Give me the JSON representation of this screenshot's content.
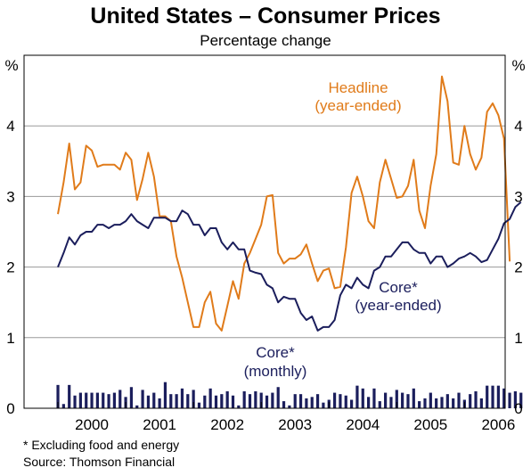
{
  "title": "United States – Consumer Prices",
  "subtitle": "Percentage change",
  "footnote": "* Excluding food and energy",
  "source": "Source: Thomson Financial",
  "colors": {
    "headline": "#E07B1A",
    "core": "#1B1E5C",
    "grid": "#9a9a9a",
    "frame": "#000000"
  },
  "chart_data": {
    "type": "line",
    "title": "United States – Consumer Prices",
    "subtitle": "Percentage change",
    "ylabel_left": "%",
    "ylabel_right": "%",
    "ylim": [
      0,
      5
    ],
    "yticks": [
      0,
      1,
      2,
      3,
      4
    ],
    "xlim": [
      1999.5,
      2006.6
    ],
    "xtick_labels": [
      "2000",
      "2001",
      "2002",
      "2003",
      "2004",
      "2005",
      "2006"
    ],
    "grid": true,
    "annotations": {
      "headline": [
        "Headline",
        "(year-ended)"
      ],
      "core": [
        "Core*",
        "(year-ended)"
      ],
      "core_monthly": [
        "Core*",
        "(monthly)"
      ]
    },
    "series": [
      {
        "name": "Headline (year-ended)",
        "style": "line",
        "color": "#E07B1A",
        "x_start": 2000.0,
        "step": 0.08333,
        "values": [
          2.75,
          3.2,
          3.75,
          3.1,
          3.2,
          3.72,
          3.65,
          3.42,
          3.45,
          3.45,
          3.45,
          3.38,
          3.62,
          3.52,
          2.95,
          3.25,
          3.62,
          3.28,
          2.72,
          2.72,
          2.65,
          2.15,
          1.85,
          1.5,
          1.15,
          1.15,
          1.5,
          1.65,
          1.2,
          1.1,
          1.45,
          1.8,
          1.55,
          2.05,
          2.2,
          2.4,
          2.6,
          3.0,
          3.02,
          2.2,
          2.05,
          2.12,
          2.12,
          2.18,
          2.32,
          2.05,
          1.8,
          1.95,
          1.98,
          1.7,
          1.72,
          2.28,
          3.05,
          3.28,
          3.0,
          2.65,
          2.55,
          3.2,
          3.52,
          3.25,
          2.98,
          3.0,
          3.15,
          3.52,
          2.8,
          2.55,
          3.15,
          3.6,
          4.7,
          4.35,
          3.48,
          3.45,
          4.0,
          3.6,
          3.38,
          3.55,
          4.2,
          4.32,
          4.15,
          3.82,
          2.08
        ]
      },
      {
        "name": "Core* (year-ended)",
        "style": "line",
        "color": "#1B1E5C",
        "x_start": 2000.0,
        "step": 0.08333,
        "values": [
          2.0,
          2.2,
          2.42,
          2.32,
          2.45,
          2.5,
          2.5,
          2.6,
          2.6,
          2.55,
          2.6,
          2.6,
          2.65,
          2.75,
          2.65,
          2.6,
          2.55,
          2.7,
          2.7,
          2.7,
          2.65,
          2.65,
          2.8,
          2.75,
          2.6,
          2.6,
          2.45,
          2.55,
          2.55,
          2.35,
          2.25,
          2.35,
          2.25,
          2.25,
          1.95,
          1.92,
          1.9,
          1.75,
          1.7,
          1.5,
          1.58,
          1.55,
          1.55,
          1.35,
          1.25,
          1.3,
          1.1,
          1.15,
          1.15,
          1.25,
          1.6,
          1.75,
          1.7,
          1.85,
          1.75,
          1.7,
          1.95,
          2.0,
          2.15,
          2.15,
          2.25,
          2.35,
          2.35,
          2.25,
          2.2,
          2.2,
          2.05,
          2.15,
          2.15,
          2.0,
          2.05,
          2.12,
          2.15,
          2.2,
          2.15,
          2.07,
          2.1,
          2.25,
          2.4,
          2.62,
          2.68,
          2.85,
          2.92
        ]
      },
      {
        "name": "Core* (monthly)",
        "style": "bar",
        "color": "#1B1E5C",
        "x_start": 2000.0,
        "step": 0.08333,
        "values": [
          0.33,
          0.06,
          0.33,
          0.18,
          0.22,
          0.22,
          0.22,
          0.22,
          0.22,
          0.2,
          0.22,
          0.26,
          0.16,
          0.3,
          0.04,
          0.26,
          0.18,
          0.22,
          0.14,
          0.37,
          0.2,
          0.2,
          0.28,
          0.2,
          0.26,
          0.08,
          0.18,
          0.28,
          0.18,
          0.2,
          0.24,
          0.18,
          0.04,
          0.24,
          0.2,
          0.24,
          0.22,
          0.18,
          0.22,
          0.3,
          0.1,
          0.04,
          0.2,
          0.2,
          0.14,
          0.16,
          0.2,
          0.08,
          0.12,
          0.22,
          0.2,
          0.18,
          0.12,
          0.32,
          0.28,
          0.16,
          0.28,
          0.1,
          0.22,
          0.16,
          0.26,
          0.22,
          0.2,
          0.28,
          0.1,
          0.14,
          0.22,
          0.14,
          0.16,
          0.2,
          0.14,
          0.22,
          0.12,
          0.2,
          0.24,
          0.14,
          0.32,
          0.32,
          0.32,
          0.28,
          0.22,
          0.24,
          0.22
        ]
      }
    ]
  }
}
